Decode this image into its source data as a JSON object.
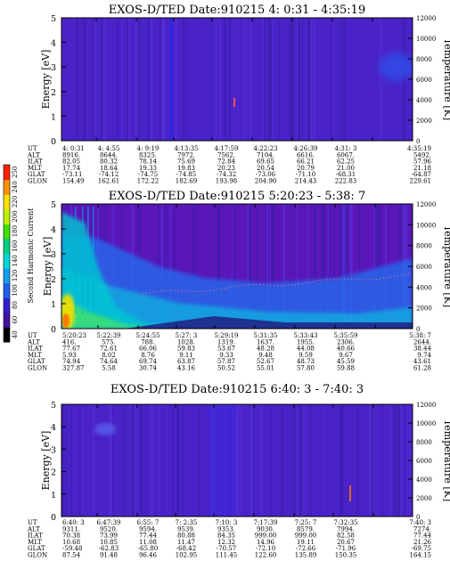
{
  "chart_data": [
    {
      "type": "heatmap",
      "title": "EXOS-D/TED   Date:910215   4: 0:31 - 4:35:19",
      "ylabel": "Energy [eV]",
      "ylabel_right": "Temperature [K]",
      "ylim": [
        0,
        5
      ],
      "y2lim": [
        0,
        12000
      ],
      "yticks": [
        "0",
        "1",
        "2",
        "3",
        "4",
        "5"
      ],
      "y2ticks": [
        "0",
        "2000",
        "4000",
        "6000",
        "8000",
        "10000",
        "12000"
      ],
      "orbit_table": {
        "row_labels": [
          "UT",
          "ALT",
          "ILAT",
          "MLT",
          "GLAT",
          "GLON"
        ],
        "columns": [
          [
            "4: 0:31",
            "8916.",
            "82.05",
            "17.74",
            "-73.11",
            "154.49"
          ],
          [
            "4: 4:55",
            "8644.",
            "80.32",
            "18.64",
            "-74.12",
            "162.61"
          ],
          [
            "4: 9:19",
            "8325.",
            "78.14",
            "19.33",
            "-74.75",
            "172.22"
          ],
          [
            "4:13:35",
            "7972.",
            "75.69",
            "19.83",
            "-74.85",
            "182.69"
          ],
          [
            "4:17:59",
            "7562.",
            "72.84",
            "20.23",
            "-74.32",
            "193.98"
          ],
          [
            "4:22:23",
            "7104.",
            "69.65",
            "20.54",
            "-73.06",
            "204.90"
          ],
          [
            "4:26:39",
            "6616.",
            "66.21",
            "20.79",
            "-71.10",
            "214.43"
          ],
          [
            "4:31: 3",
            "6067.",
            "62.25",
            "21.00",
            "-68.31",
            "222.83"
          ],
          [
            "4:35:19",
            "5492.",
            "57.96",
            "21.18",
            "-64.87",
            "229.61"
          ]
        ]
      }
    },
    {
      "type": "heatmap",
      "title": "EXOS-D/TED   Date:910215   5:20:23 - 5:38: 7",
      "ylabel": "Energy [eV]",
      "ylabel_right": "Temperature [K]",
      "ylim": [
        0,
        5
      ],
      "y2lim": [
        0,
        12000
      ],
      "yticks": [
        "0",
        "1",
        "2",
        "3",
        "4",
        "5"
      ],
      "y2ticks": [
        "0",
        "2000",
        "4000",
        "6000",
        "8000",
        "10000",
        "12000"
      ],
      "colorbar": {
        "label": "Second Harmonic Current",
        "ticks": [
          "40",
          "60",
          "80",
          "100",
          "120",
          "140",
          "160",
          "180",
          "200",
          "220",
          "240",
          "250"
        ]
      },
      "orbit_table": {
        "row_labels": [
          "UT",
          "ALT",
          "ILAT",
          "MLT",
          "GLAT",
          "GLON"
        ],
        "columns": [
          [
            "5:20:23",
            "416.",
            "77.67",
            "5.93",
            "74.94",
            "327.87"
          ],
          [
            "5:22:39",
            "575.",
            "72.61",
            "8.02",
            "74.64",
            "5.58"
          ],
          [
            "5:24:55",
            "788.",
            "66.06",
            "8.76",
            "69.74",
            "30.74"
          ],
          [
            "5:27: 3",
            "1028.",
            "59.83",
            "9.11",
            "63.87",
            "43.16"
          ],
          [
            "5:29:19",
            "1319.",
            "53.67",
            "9.33",
            "57.87",
            "50.52"
          ],
          [
            "5:31:35",
            "1637.",
            "48.28",
            "9.48",
            "52.67",
            "55.01"
          ],
          [
            "5:33:43",
            "1955.",
            "44.08",
            "9.59",
            "48.73",
            "57.80"
          ],
          [
            "5:35:59",
            "2306.",
            "40.66",
            "9.67",
            "45.59",
            "59.88"
          ],
          [
            "5:38: 7",
            "2644.",
            "38.44",
            "9.74",
            "43.61",
            "61.28"
          ]
        ]
      }
    },
    {
      "type": "heatmap",
      "title": "EXOS-D/TED   Date:910215   6:40: 3 - 7:40: 3",
      "ylabel": "Energy [eV]",
      "ylabel_right": "Temperature [K]",
      "ylim": [
        0,
        5
      ],
      "y2lim": [
        0,
        12000
      ],
      "yticks": [
        "0",
        "1",
        "2",
        "3",
        "4",
        "5"
      ],
      "y2ticks": [
        "0",
        "2000",
        "4000",
        "6000",
        "8000",
        "10000",
        "12000"
      ],
      "orbit_table": {
        "row_labels": [
          "UT",
          "ALT",
          "ILAT",
          "MLT",
          "GLAT",
          "GLON"
        ],
        "columns": [
          [
            "6:40: 3",
            "9311.",
            "70.38",
            "10.68",
            "-59.48",
            "87.54"
          ],
          [
            "6:47:39",
            "9520.",
            "73.99",
            "10.85",
            "-62.83",
            "91.48"
          ],
          [
            "6:55: 7",
            "9594.",
            "77.44",
            "11.08",
            "-65.80",
            "96.46"
          ],
          [
            "7: 2:35",
            "9539.",
            "80.88",
            "11.47",
            "-68.42",
            "102.95"
          ],
          [
            "7:10: 3",
            "9353.",
            "84.35",
            "12.32",
            "-70.57",
            "111.45"
          ],
          [
            "7:17:39",
            "9030.",
            "999.00",
            "14.96",
            "-72.10",
            "122.60"
          ],
          [
            "7:25: 7",
            "8579.",
            "999.00",
            "19.11",
            "-72.66",
            "135.89"
          ],
          [
            "7:32:35",
            "7994.",
            "82.58",
            "20.67",
            "-71.96",
            "150.35"
          ],
          [
            "7:40: 3",
            "7274.",
            "77.44",
            "21.26",
            "-69.75",
            "164.15"
          ]
        ]
      }
    }
  ]
}
